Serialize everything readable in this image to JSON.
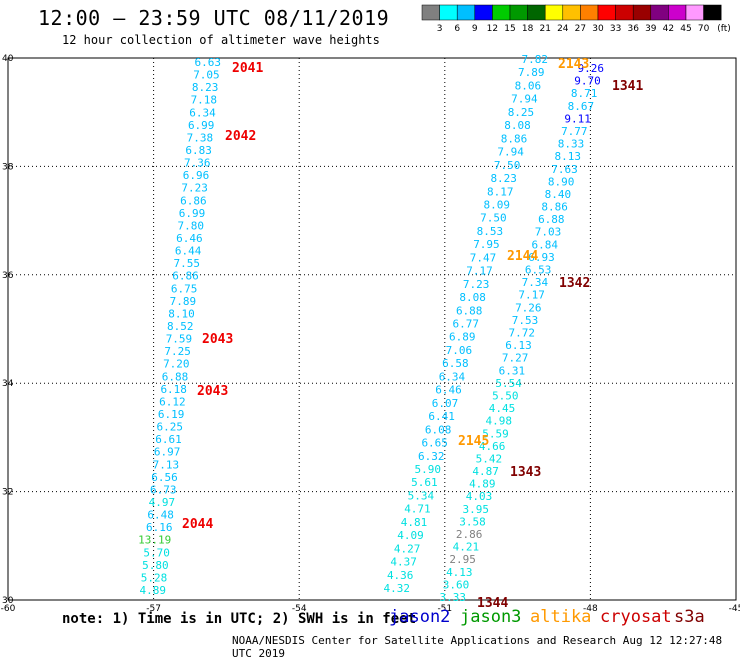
{
  "header": {
    "title": "12:00 – 23:59 UTC 08/11/2019",
    "subtitle": "12 hour collection of altimeter wave heights"
  },
  "footer": {
    "note": "note: 1) Time is in UTC; 2) SWH is in feet",
    "credit": "NOAA/NESDIS Center for Satellite Applications and Research   Aug 12 12:27:48 UTC 2019"
  },
  "colorbar": {
    "unit": "(ft)",
    "colors": [
      "#808080",
      "#00ffff",
      "#00bfff",
      "#0000ff",
      "#00cc00",
      "#009900",
      "#006600",
      "#ffff00",
      "#ffc000",
      "#ff8000",
      "#ff0000",
      "#cc0000",
      "#990000",
      "#800080",
      "#cc00cc",
      "#ff99ff",
      "#000000"
    ],
    "labels": [
      "3",
      "6",
      "9",
      "12",
      "15",
      "18",
      "21",
      "24",
      "27",
      "30",
      "33",
      "36",
      "39",
      "42",
      "45",
      "70"
    ]
  },
  "satellites": [
    {
      "name": "jason2",
      "color": "#0000cc"
    },
    {
      "name": "jason3",
      "color": "#009900"
    },
    {
      "name": "altika",
      "color": "#ff9900"
    },
    {
      "name": "cryosat",
      "color": "#cc0000"
    },
    {
      "name": "s3a",
      "color": "#800000"
    }
  ],
  "map_data": {
    "lon_range": [
      -60,
      -45
    ],
    "lat_range": [
      30,
      40
    ],
    "lon_ticks": [
      "-60",
      "-57",
      "-54",
      "-51",
      "-48",
      "-45"
    ],
    "lat_ticks": [
      "30",
      "32",
      "34",
      "36",
      "38",
      "40"
    ],
    "grid": true,
    "tracks": [
      {
        "values": [
          "6.63",
          "7.05",
          "8.23",
          "7.18",
          "6.34",
          "6.99",
          "7.38",
          "6.83",
          "7.36",
          "6.96",
          "7.23",
          "6.86",
          "6.99",
          "7.80",
          "6.46",
          "6.44",
          "7.55",
          "6.86",
          "6.75",
          "7.89",
          "8.10",
          "8.52",
          "7.59",
          "7.25",
          "7.20",
          "6.88",
          "6.18",
          "6.12",
          "6.19",
          "6.25",
          "6.61",
          "6.97",
          "7.13",
          "6.56",
          "6.73",
          "4.97",
          "6.48",
          "6.16",
          "13.19",
          "5.70",
          "5.80",
          "5.28",
          "4.89"
        ],
        "colors": [
          "#00bfff",
          "#00bfff",
          "#00bfff",
          "#00bfff",
          "#00bfff",
          "#00bfff",
          "#00bfff",
          "#00bfff",
          "#00bfff",
          "#00bfff",
          "#00bfff",
          "#00bfff",
          "#00bfff",
          "#00bfff",
          "#00bfff",
          "#00bfff",
          "#00bfff",
          "#00bfff",
          "#00bfff",
          "#00bfff",
          "#00bfff",
          "#00bfff",
          "#00bfff",
          "#00bfff",
          "#00bfff",
          "#00bfff",
          "#00bfff",
          "#00bfff",
          "#00bfff",
          "#00bfff",
          "#00bfff",
          "#00bfff",
          "#00bfff",
          "#00bfff",
          "#00bfff",
          "#00e0e0",
          "#00bfff",
          "#00bfff",
          "#33cc33",
          "#00e0e0",
          "#00e0e0",
          "#00e0e0",
          "#00e0e0"
        ]
      },
      {
        "values": [
          "7.82",
          "7.89",
          "8.06",
          "7.94",
          "8.25",
          "8.08",
          "8.86",
          "7.94",
          "7.50",
          "8.23",
          "8.17",
          "8.09",
          "7.50",
          "8.53",
          "7.95",
          "7.47",
          "7.17",
          "7.23",
          "8.08",
          "6.88",
          "6.77",
          "6.89",
          "7.06",
          "6.58",
          "6.34",
          "6.46",
          "6.07",
          "6.41",
          "6.08",
          "6.65",
          "6.32",
          "5.90",
          "5.61",
          "5.34",
          "4.71",
          "4.81",
          "4.09",
          "4.27",
          "4.37",
          "4.36",
          "4.32"
        ],
        "colors": [
          "#00bfff",
          "#00bfff",
          "#00bfff",
          "#00bfff",
          "#00bfff",
          "#00bfff",
          "#00bfff",
          "#00bfff",
          "#00bfff",
          "#00bfff",
          "#00bfff",
          "#00bfff",
          "#00bfff",
          "#00bfff",
          "#00bfff",
          "#00bfff",
          "#00bfff",
          "#00bfff",
          "#00bfff",
          "#00bfff",
          "#00bfff",
          "#00bfff",
          "#00bfff",
          "#00bfff",
          "#00bfff",
          "#00bfff",
          "#00bfff",
          "#00bfff",
          "#00bfff",
          "#00bfff",
          "#00bfff",
          "#00e0e0",
          "#00e0e0",
          "#00e0e0",
          "#00e0e0",
          "#00e0e0",
          "#00e0e0",
          "#00e0e0",
          "#00e0e0",
          "#00e0e0",
          "#00e0e0"
        ]
      },
      {
        "values": [
          "9.26",
          "9.70",
          "8.71",
          "8.67",
          "9.11",
          "7.77",
          "8.33",
          "8.13",
          "7.63",
          "8.90",
          "8.40",
          "8.86",
          "6.88",
          "7.03",
          "6.84",
          "6.93",
          "6.53",
          "7.34",
          "7.17",
          "7.26",
          "7.53",
          "7.72",
          "6.13",
          "7.27",
          "6.31",
          "5.54",
          "5.50",
          "4.45",
          "4.98",
          "5.59",
          "4.66",
          "5.42",
          "4.87",
          "4.89",
          "4.03",
          "3.95",
          "3.58",
          "2.86",
          "4.21",
          "2.95",
          "4.13",
          "3.60",
          "3.33"
        ],
        "colors": [
          "#0000ff",
          "#0000ff",
          "#00bfff",
          "#00bfff",
          "#0000ff",
          "#00bfff",
          "#00bfff",
          "#00bfff",
          "#00bfff",
          "#00bfff",
          "#00bfff",
          "#00bfff",
          "#00bfff",
          "#00bfff",
          "#00bfff",
          "#00bfff",
          "#00bfff",
          "#00bfff",
          "#00bfff",
          "#00bfff",
          "#00bfff",
          "#00bfff",
          "#00bfff",
          "#00bfff",
          "#00bfff",
          "#00e0e0",
          "#00e0e0",
          "#00e0e0",
          "#00e0e0",
          "#00e0e0",
          "#00e0e0",
          "#00e0e0",
          "#00e0e0",
          "#00e0e0",
          "#00e0e0",
          "#00e0e0",
          "#00e0e0",
          "#808080",
          "#00e0e0",
          "#808080",
          "#00e0e0",
          "#00e0e0",
          "#00e0e0"
        ]
      }
    ],
    "pass_labels": [
      {
        "text": "2041",
        "color": "#ee0000"
      },
      {
        "text": "2042",
        "color": "#ee0000"
      },
      {
        "text": "2043",
        "color": "#ee0000"
      },
      {
        "text": "2043",
        "color": "#ee0000"
      },
      {
        "text": "2044",
        "color": "#ee0000"
      },
      {
        "text": "2143",
        "color": "#ff9900"
      },
      {
        "text": "1341",
        "color": "#800000"
      },
      {
        "text": "2144",
        "color": "#ff9900"
      },
      {
        "text": "1342",
        "color": "#800000"
      },
      {
        "text": "2145",
        "color": "#ff9900"
      },
      {
        "text": "1343",
        "color": "#800000"
      },
      {
        "text": "1344",
        "color": "#800000"
      }
    ]
  }
}
